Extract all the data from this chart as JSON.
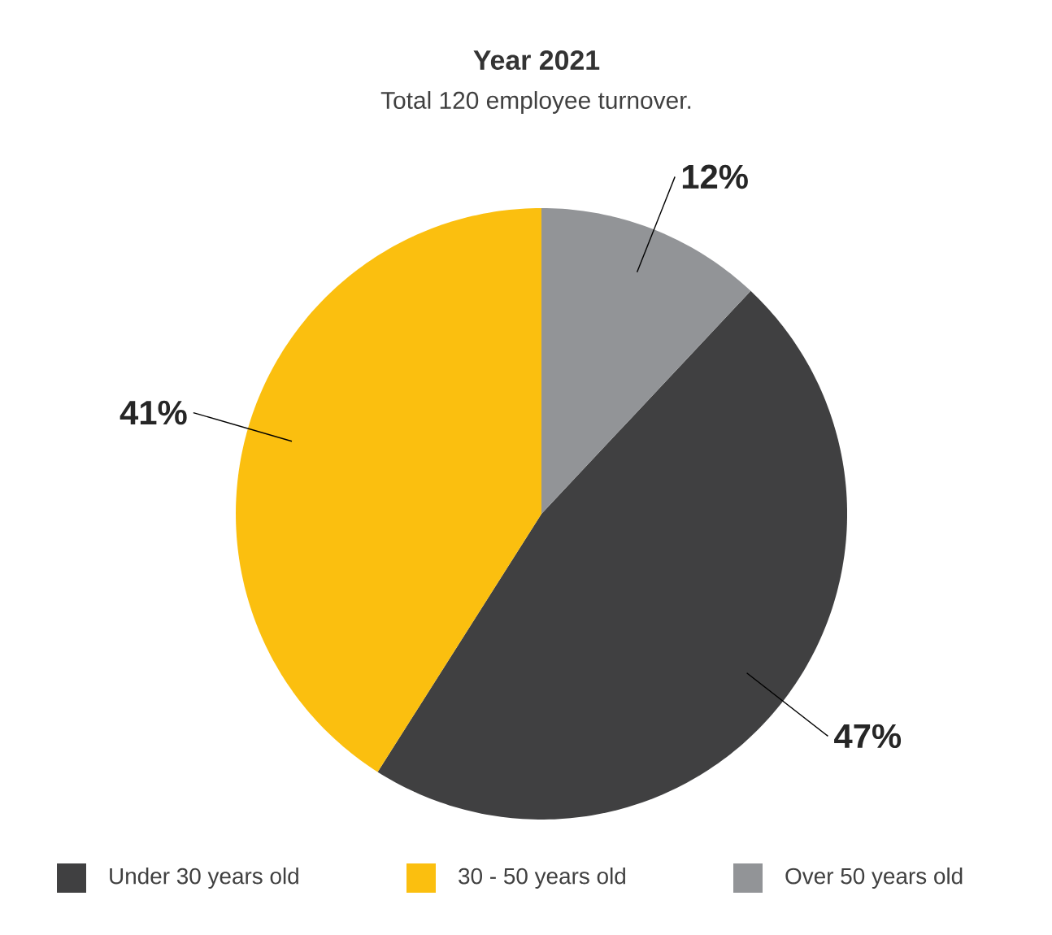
{
  "chart_data": {
    "type": "pie",
    "title": "Year 2021",
    "subtitle": "Total 120 employee turnover.",
    "categories": [
      "Under 30 years old",
      "30 - 50 years old",
      "Over 50 years old"
    ],
    "values": [
      47,
      41,
      12
    ],
    "colors": [
      "#404041",
      "#fbbf0f",
      "#929497"
    ],
    "value_labels": [
      "47%",
      "41%",
      "12%"
    ],
    "legend": "bottom"
  }
}
